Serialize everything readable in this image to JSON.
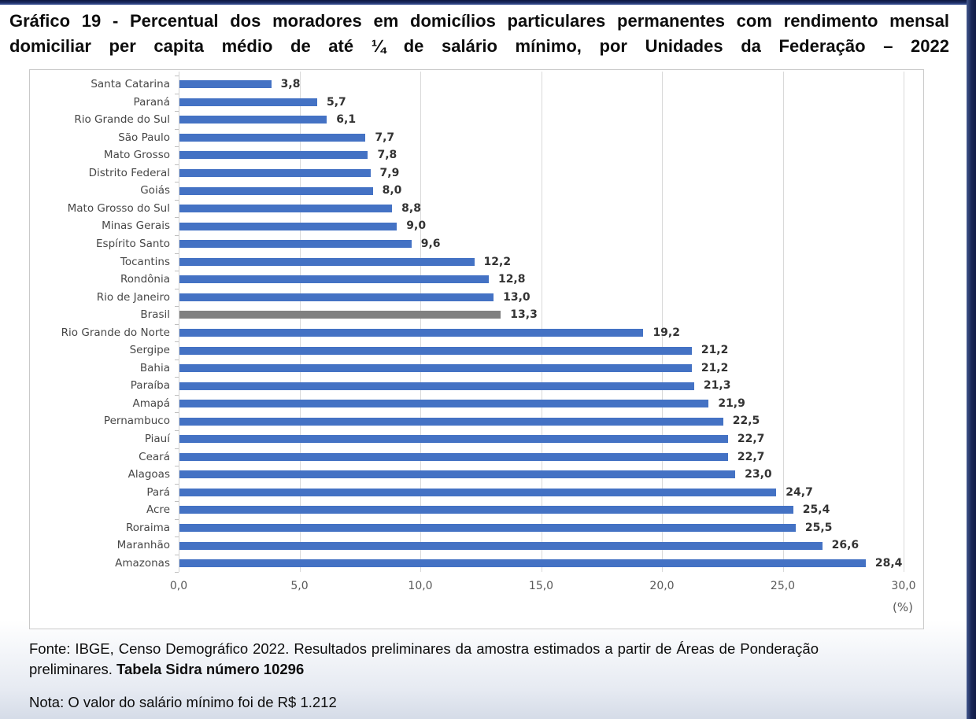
{
  "page": {
    "title": "Gráfico 19 - Percentual dos moradores em domicílios particulares permanentes com rendimento mensal domiciliar per capita médio de até ¼ de salário mínimo, por Unidades da Federação – 2022"
  },
  "chart_data": {
    "type": "bar",
    "orientation": "horizontal",
    "title": "Percentual dos moradores em domicílios particulares permanentes com rendimento mensal domiciliar per capita médio de até ¼ de salário mínimo, por Unidades da Federação – 2022",
    "xlabel": "(%)",
    "ylabel": "",
    "xlim": [
      0,
      30
    ],
    "grid": true,
    "xticks": [
      0,
      5,
      10,
      15,
      20,
      25,
      30
    ],
    "xtick_labels": [
      "0,0",
      "5,0",
      "10,0",
      "15,0",
      "20,0",
      "25,0",
      "30,0"
    ],
    "bar_color": "#4472C4",
    "highlight": {
      "category": "Brasil",
      "color": "#808080"
    },
    "categories": [
      "Santa Catarina",
      "Paraná",
      "Rio Grande do Sul",
      "São Paulo",
      "Mato Grosso",
      "Distrito Federal",
      "Goiás",
      "Mato Grosso do Sul",
      "Minas Gerais",
      "Espírito Santo",
      "Tocantins",
      "Rondônia",
      "Rio de Janeiro",
      "Brasil",
      "Rio Grande do Norte",
      "Sergipe",
      "Bahia",
      "Paraíba",
      "Amapá",
      "Pernambuco",
      "Piauí",
      "Ceará",
      "Alagoas",
      "Pará",
      "Acre",
      "Roraima",
      "Maranhão",
      "Amazonas"
    ],
    "values": [
      3.8,
      5.7,
      6.1,
      7.7,
      7.8,
      7.9,
      8.0,
      8.8,
      9.0,
      9.6,
      12.2,
      12.8,
      13.0,
      13.3,
      19.2,
      21.2,
      21.2,
      21.3,
      21.9,
      22.5,
      22.7,
      22.7,
      23.0,
      24.7,
      25.4,
      25.5,
      26.6,
      28.4
    ],
    "value_labels": [
      "3,8",
      "5,7",
      "6,1",
      "7,7",
      "7,8",
      "7,9",
      "8,0",
      "8,8",
      "9,0",
      "9,6",
      "12,2",
      "12,8",
      "13,0",
      "13,3",
      "19,2",
      "21,2",
      "21,2",
      "21,3",
      "21,9",
      "22,5",
      "22,7",
      "22,7",
      "23,0",
      "24,7",
      "25,4",
      "25,5",
      "26,6",
      "28,4"
    ]
  },
  "footer": {
    "fonte_text": "Fonte: IBGE, Censo Demográfico 2022. Resultados preliminares da amostra estimados a partir de Áreas de Ponderação preliminares. ",
    "fonte_bold": "Tabela Sidra número 10296",
    "nota": "Nota: O valor do salário mínimo foi de R$ 1.212"
  }
}
